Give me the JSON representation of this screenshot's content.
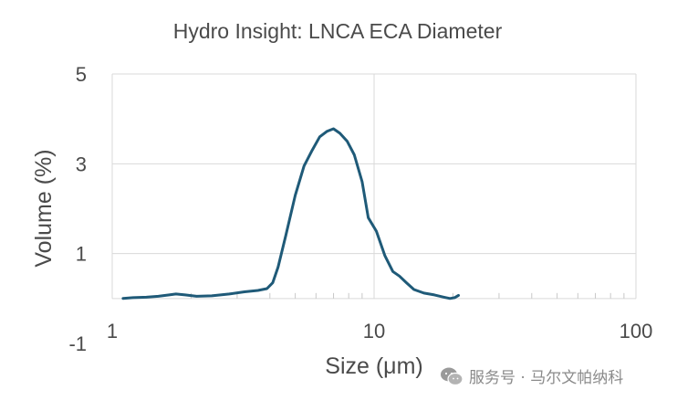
{
  "chart_data": {
    "type": "line",
    "title": "Hydro Insight: LNCA ECA Diameter",
    "xlabel": "Size (μm)",
    "ylabel": "Volume (%)",
    "xscale": "log",
    "xlim": [
      1,
      100
    ],
    "ylim": [
      -1,
      5
    ],
    "x_ticks": [
      1,
      10,
      100
    ],
    "x_tick_labels": [
      "1",
      "10",
      "100"
    ],
    "y_ticks": [
      -1,
      1,
      3,
      5
    ],
    "y_tick_labels": [
      "-1",
      "1",
      "3",
      "5"
    ],
    "grid": true,
    "legend": "none",
    "series": [
      {
        "color": "#1f5a78",
        "points": [
          [
            1.1,
            0.0
          ],
          [
            1.2,
            0.02
          ],
          [
            1.35,
            0.03
          ],
          [
            1.5,
            0.05
          ],
          [
            1.65,
            0.08
          ],
          [
            1.75,
            0.1
          ],
          [
            1.9,
            0.08
          ],
          [
            2.1,
            0.05
          ],
          [
            2.4,
            0.06
          ],
          [
            2.8,
            0.1
          ],
          [
            3.2,
            0.15
          ],
          [
            3.6,
            0.18
          ],
          [
            3.9,
            0.22
          ],
          [
            4.1,
            0.35
          ],
          [
            4.3,
            0.7
          ],
          [
            4.6,
            1.4
          ],
          [
            5.0,
            2.3
          ],
          [
            5.4,
            2.95
          ],
          [
            5.8,
            3.3
          ],
          [
            6.2,
            3.6
          ],
          [
            6.6,
            3.72
          ],
          [
            7.0,
            3.78
          ],
          [
            7.4,
            3.68
          ],
          [
            7.9,
            3.5
          ],
          [
            8.4,
            3.2
          ],
          [
            9.0,
            2.6
          ],
          [
            9.5,
            1.8
          ],
          [
            10.2,
            1.5
          ],
          [
            11.0,
            0.95
          ],
          [
            11.8,
            0.6
          ],
          [
            12.5,
            0.5
          ],
          [
            13.3,
            0.35
          ],
          [
            14.2,
            0.2
          ],
          [
            15.5,
            0.12
          ],
          [
            17.0,
            0.08
          ],
          [
            18.5,
            0.03
          ],
          [
            19.5,
            0.0
          ],
          [
            20.3,
            0.02
          ],
          [
            21.0,
            0.07
          ]
        ]
      }
    ]
  },
  "watermark": {
    "text": "服务号 · 马尔文帕纳科",
    "icon": "wechat-icon"
  }
}
